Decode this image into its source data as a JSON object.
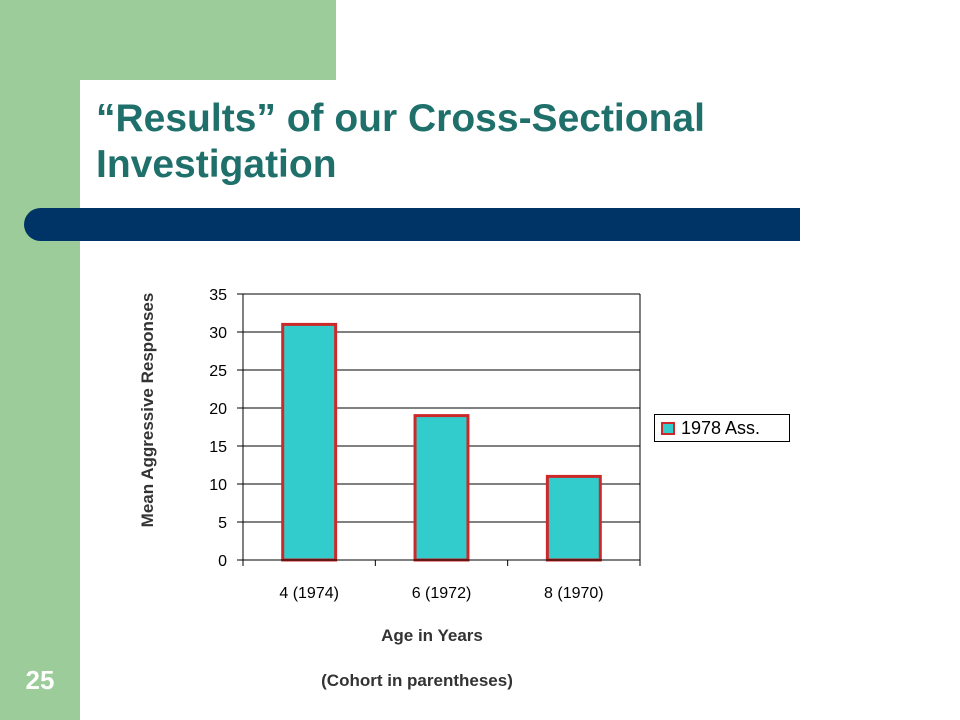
{
  "slide": {
    "title": "“Results” of our Cross-Sectional Investigation",
    "number": "25"
  },
  "colors": {
    "accent_green": "#9ccc99",
    "title_text": "#1f6f6b",
    "title_bar": "#003366",
    "bar_fill": "#33cccc",
    "bar_edge": "#cc2a2a"
  },
  "chart_data": {
    "type": "bar",
    "categories": [
      "4 (1974)",
      "6 (1972)",
      "8 (1970)"
    ],
    "series": [
      {
        "name": "1978 Ass.",
        "values": [
          31,
          19,
          11
        ]
      }
    ],
    "title": "",
    "ylabel": "Mean Aggressive Responses",
    "xlabel": "Age in Years",
    "xlabel_note": "(Cohort in parentheses)",
    "ylim": [
      0,
      35
    ],
    "yticks": [
      0,
      5,
      10,
      15,
      20,
      25,
      30,
      35
    ],
    "grid": true,
    "legend": "right"
  }
}
